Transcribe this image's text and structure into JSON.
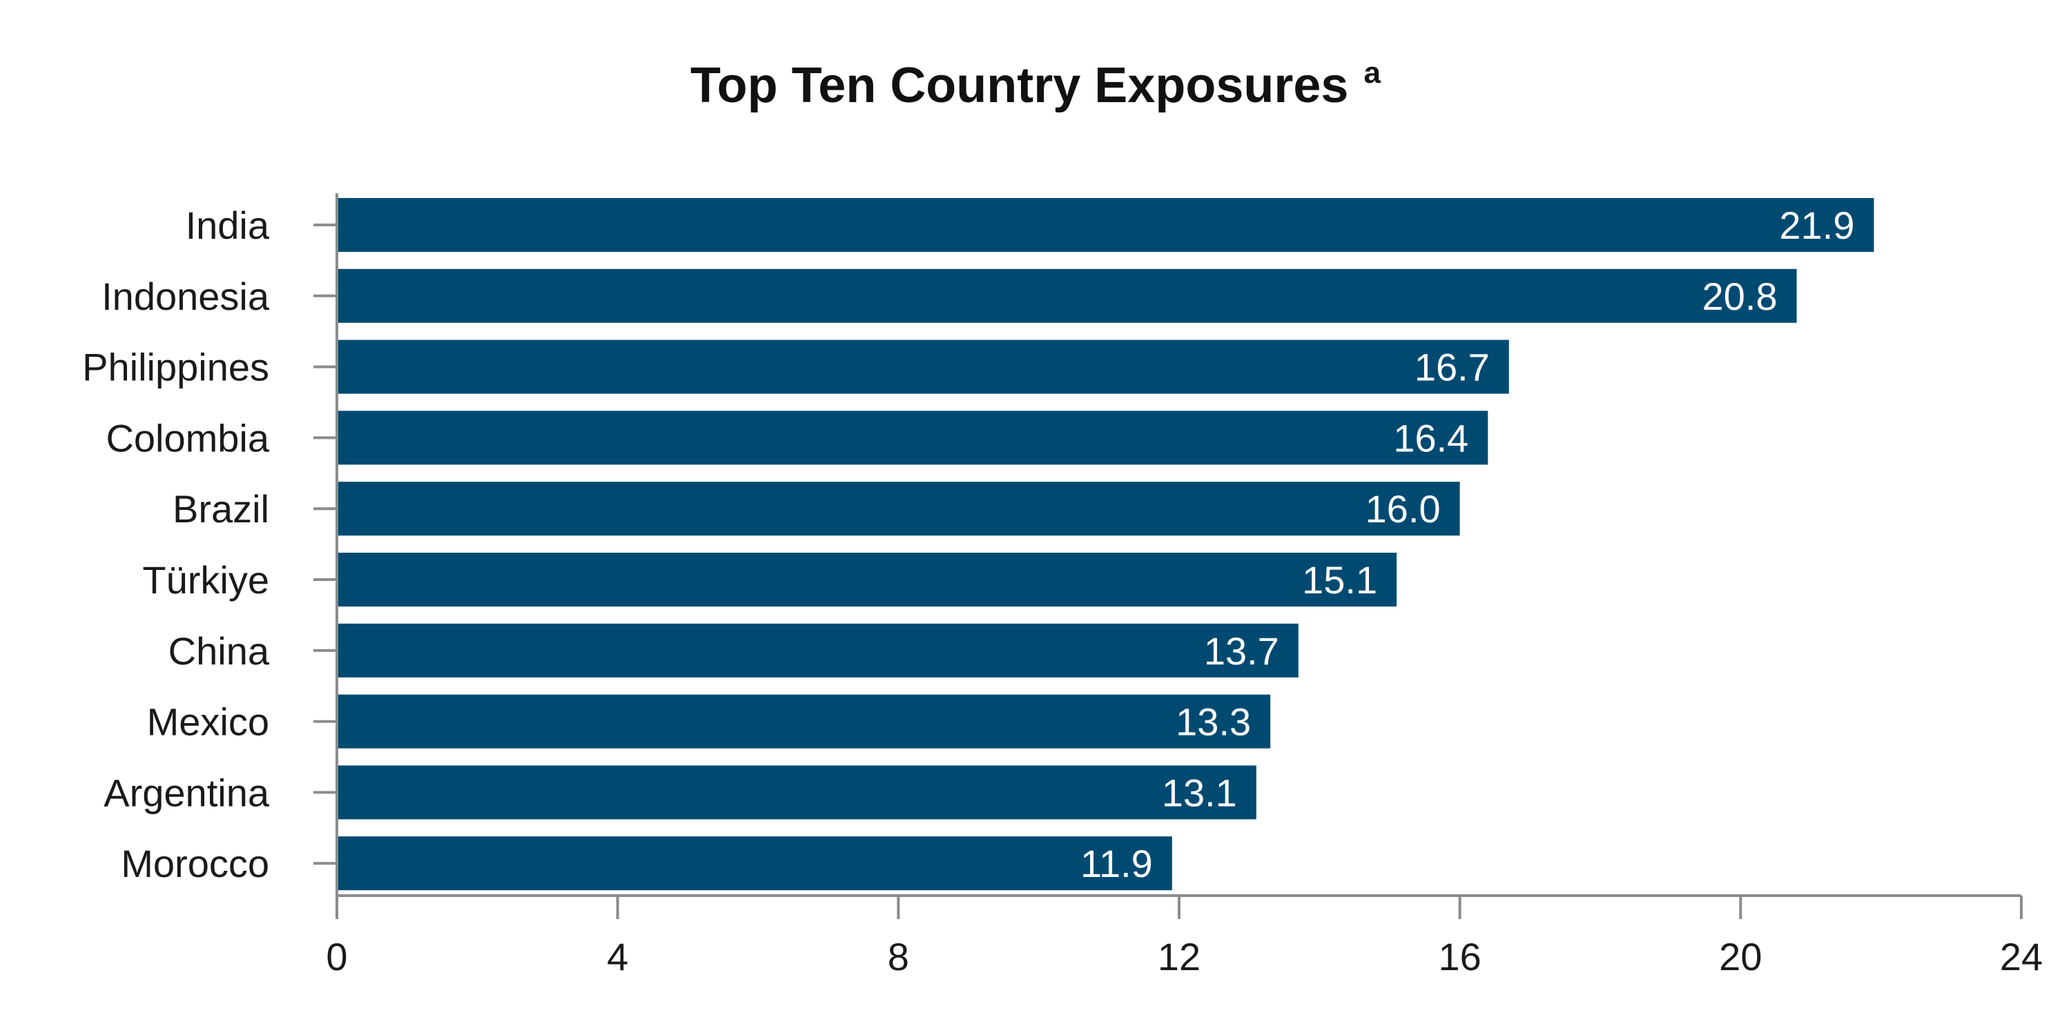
{
  "chart_data": {
    "type": "bar",
    "orientation": "horizontal",
    "title": "Top Ten Country Exposures",
    "title_superscript": "a",
    "categories": [
      "India",
      "Indonesia",
      "Philippines",
      "Colombia",
      "Brazil",
      "Türkiye",
      "China",
      "Mexico",
      "Argentina",
      "Morocco"
    ],
    "values": [
      21.9,
      20.8,
      16.7,
      16.4,
      16.0,
      15.1,
      13.7,
      13.3,
      13.1,
      11.9
    ],
    "data_labels": [
      "21.9",
      "20.8",
      "16.7",
      "16.4",
      "16.0",
      "15.1",
      "13.7",
      "13.3",
      "13.1",
      "11.9"
    ],
    "xlim": [
      0,
      24
    ],
    "xticks": [
      0,
      4,
      8,
      12,
      16,
      20,
      24
    ],
    "xtick_labels": [
      "0",
      "4",
      "8",
      "12",
      "16",
      "20",
      "24"
    ],
    "xlabel": "",
    "ylabel": "",
    "grid": false,
    "legend": "none",
    "bar_color": "#004a72",
    "axis_color": "#8c8c8c",
    "label_color": "#ffffff"
  }
}
